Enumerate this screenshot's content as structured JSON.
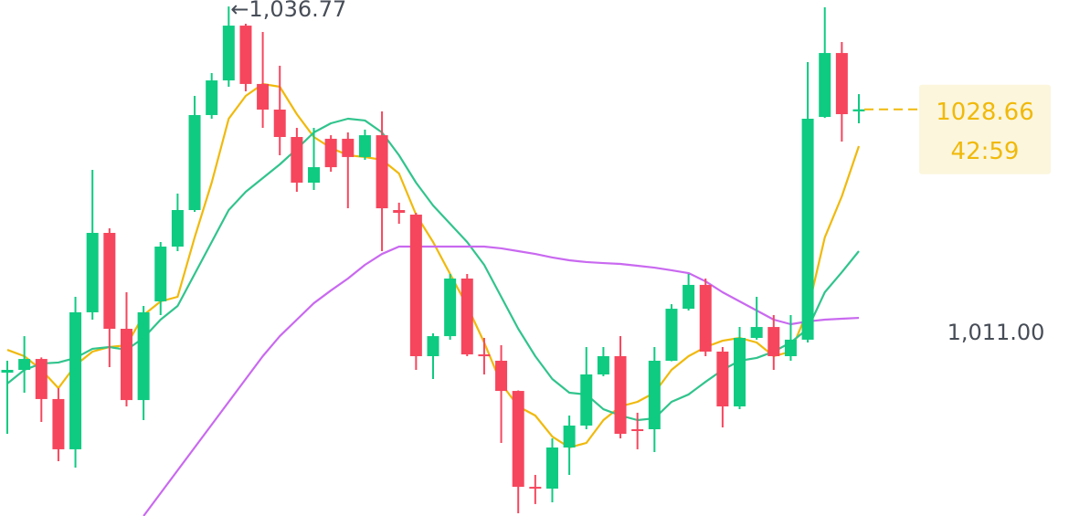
{
  "chart_data": {
    "type": "candlestick",
    "up_color": "#0ecb81",
    "down_color": "#f6465d",
    "ylim": [
      996.6,
      1037.28
    ],
    "yticks": [
      {
        "value": 1011,
        "label": "1,011.00"
      }
    ],
    "open": [
      1007.9,
      1008.12,
      1008.98,
      1005.82,
      1001.86,
      1012.66,
      1018.92,
      1011.36,
      1005.74,
      1013.52,
      1017.84,
      1020.72,
      1028.21,
      1030.94,
      1035.26,
      1030.66,
      1028.64,
      1026.48,
      1022.88,
      1026.34,
      1026.34,
      1024.9,
      1026.62,
      1020.72,
      1020.36,
      1009.2,
      1010.78,
      1015.32,
      1009.34,
      1008.84,
      1006.46,
      998.9,
      998.76,
      1002.0,
      1003.73,
      1007.76,
      1009.2,
      1003.44,
      1003.44,
      1008.84,
      1012.94,
      1014.82,
      1009.56,
      1005.24,
      1010.64,
      1011.5,
      1009.2,
      1010.5,
      1028.06,
      1033.1,
      1028.5
    ],
    "high": [
      1008.84,
      1010.78,
      1009.1,
      1006.68,
      1013.88,
      1023.89,
      1019.28,
      1014.24,
      1013.16,
      1018.2,
      1022.02,
      1029.72,
      1031.52,
      1036.77,
      1035.41,
      1034.76,
      1032.1,
      1027.2,
      1027.2,
      1026.62,
      1026.84,
      1027.06,
      1028.5,
      1021.3,
      1020.5,
      1011.0,
      1015.68,
      1015.68,
      1010.64,
      1010.06,
      1006.5,
      999.84,
      1002.72,
      1004.52,
      1009.92,
      1009.92,
      1010.78,
      1004.74,
      1009.92,
      1013.3,
      1015.68,
      1015.32,
      1009.92,
      1011.5,
      1013.88,
      1012.44,
      1012.44,
      1032.38,
      1036.7,
      1033.97,
      1029.86
    ],
    "low": [
      1003.08,
      1006.32,
      1004.02,
      1000.92,
      1000.42,
      1012.08,
      1008.34,
      1005.24,
      1004.16,
      1012.44,
      1017.48,
      1020.58,
      1027.92,
      1030.44,
      1030.08,
      1027.2,
      1025.04,
      1022.16,
      1022.3,
      1023.74,
      1020.86,
      1024.68,
      1017.48,
      1019.64,
      1008.12,
      1007.4,
      1010.5,
      1009.2,
      1007.76,
      1002.36,
      996.82,
      997.54,
      997.68,
      999.84,
      1003.44,
      1007.62,
      1002.72,
      1001.86,
      1001.64,
      1008.8,
      1012.8,
      1009.2,
      1003.58,
      1005.02,
      1010.5,
      1008.12,
      1008.84,
      1010.28,
      1027.98,
      1026.12,
      1027.56
    ],
    "close": [
      1008.12,
      1008.98,
      1005.82,
      1001.86,
      1012.66,
      1018.92,
      1011.36,
      1005.74,
      1012.66,
      1017.84,
      1020.72,
      1028.21,
      1030.94,
      1035.26,
      1030.66,
      1028.64,
      1026.48,
      1022.88,
      1024.1,
      1024.1,
      1024.9,
      1026.62,
      1020.86,
      1020.5,
      1009.2,
      1010.78,
      1015.32,
      1009.34,
      1009.2,
      1006.46,
      998.9,
      998.76,
      1002.0,
      1003.73,
      1007.76,
      1009.2,
      1003.08,
      1003.3,
      1008.84,
      1012.94,
      1014.82,
      1009.56,
      1005.24,
      1010.64,
      1011.5,
      1009.2,
      1010.5,
      1027.92,
      1033.1,
      1028.28,
      1028.66
    ],
    "overlays": [
      {
        "color": "#f0b90b",
        "values": [
          1009.7,
          1009.2,
          1008.12,
          1006.68,
          1008.48,
          1009.56,
          1009.92,
          1010.06,
          1012.44,
          1013.52,
          1013.88,
          1018.56,
          1022.88,
          1027.92,
          1029.72,
          1030.66,
          1030.44,
          1028.28,
          1026.48,
          1025.62,
          1025.04,
          1024.9,
          1024.68,
          1023.6,
          1020.36,
          1018.2,
          1015.68,
          1013.16,
          1010.28,
          1007.04,
          1005.24,
          1004.52,
          1002.86,
          1002.0,
          1002.36,
          1004.16,
          1005.24,
          1005.6,
          1006.32,
          1008.12,
          1009.2,
          1009.92,
          1010.42,
          1010.64,
          1010.28,
          1009.2,
          1009.56,
          1012.8,
          1018.56,
          1021.8,
          1025.76
        ]
      },
      {
        "color": "#31c48d",
        "values": [
          1007.04,
          1008.12,
          1008.62,
          1008.7,
          1009.06,
          1009.78,
          1009.92,
          1009.7,
          1010.64,
          1012.08,
          1013.16,
          1015.68,
          1018.2,
          1020.72,
          1022.16,
          1023.24,
          1024.32,
          1025.54,
          1026.84,
          1027.56,
          1027.92,
          1027.78,
          1026.84,
          1025.04,
          1022.88,
          1021.08,
          1019.64,
          1018.2,
          1016.4,
          1013.88,
          1011.36,
          1009.2,
          1007.4,
          1006.32,
          1006.18,
          1005.02,
          1004.52,
          1004.16,
          1004.3,
          1005.6,
          1006.18,
          1007.18,
          1008.12,
          1008.84,
          1009.06,
          1009.56,
          1010.28,
          1011.36,
          1014.24,
          1015.82,
          1017.48
        ]
      },
      {
        "color": "#c969f0",
        "values": [
          null,
          null,
          null,
          null,
          null,
          null,
          null,
          null,
          996.6,
          998.4,
          1000.2,
          1002.0,
          1003.8,
          1005.6,
          1007.4,
          1009.2,
          1010.78,
          1012.08,
          1013.38,
          1014.38,
          1015.32,
          1016.4,
          1017.26,
          1017.84,
          1017.84,
          1017.84,
          1017.84,
          1017.84,
          1017.84,
          1017.7,
          1017.48,
          1017.26,
          1016.98,
          1016.76,
          1016.62,
          1016.54,
          1016.47,
          1016.33,
          1016.18,
          1015.97,
          1015.75,
          1015.1,
          1014.24,
          1013.52,
          1012.8,
          1012.08,
          1011.72,
          1011.94,
          1012.08,
          1012.15,
          1012.22
        ]
      }
    ],
    "high_annotation": {
      "value": 1036.77,
      "label": "←1,036.77"
    },
    "last_price": {
      "value": 1028.66,
      "label": "1028.66",
      "countdown": "42:59",
      "color": "#f0b90b",
      "box_color": "#fbf6dc"
    }
  }
}
